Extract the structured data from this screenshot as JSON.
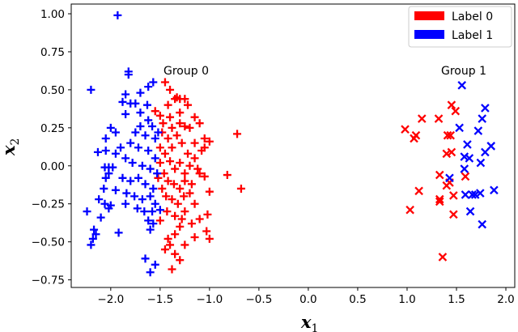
{
  "chart_data": {
    "type": "scatter",
    "xlabel": "x_1",
    "ylabel": "x_2",
    "xlim": [
      -2.4,
      2.09
    ],
    "ylim": [
      -0.8,
      1.064
    ],
    "xticks": [
      "−2.0",
      "−1.5",
      "−1.0",
      "−0.5",
      "0.0",
      "0.5",
      "1.0",
      "1.5",
      "2.0"
    ],
    "xtick_values": [
      -2.0,
      -1.5,
      -1.0,
      -0.5,
      0.0,
      0.5,
      1.0,
      1.5,
      2.0
    ],
    "yticks": [
      "1.00",
      "0.75",
      "0.50",
      "0.25",
      "0.00",
      "−0.25",
      "−0.50",
      "−0.75"
    ],
    "ytick_values": [
      1.0,
      0.75,
      0.5,
      0.25,
      0.0,
      -0.25,
      -0.5,
      -0.75
    ],
    "grid": false,
    "legend_position": "top-right",
    "annotations": [
      {
        "text": "Group 0",
        "x": -1.25,
        "y": 0.63
      },
      {
        "text": "Group 1",
        "x": 1.6,
        "y": 0.63
      }
    ],
    "series": [
      {
        "name": "Label 0",
        "color": "#ff0000",
        "groups": [
          {
            "group": "Group 0",
            "marker": "plus",
            "points": [
              [
                -1.45,
                0.55
              ],
              [
                -1.4,
                0.5
              ],
              [
                -1.33,
                0.45
              ],
              [
                -1.42,
                0.4
              ],
              [
                -1.35,
                0.44
              ],
              [
                -1.3,
                0.44
              ],
              [
                -1.25,
                0.44
              ],
              [
                -1.22,
                0.4
              ],
              [
                -1.55,
                0.36
              ],
              [
                -1.5,
                0.33
              ],
              [
                -1.4,
                0.32
              ],
              [
                -1.3,
                0.35
              ],
              [
                -1.15,
                0.32
              ],
              [
                -1.1,
                0.28
              ],
              [
                -1.2,
                0.25
              ],
              [
                -1.25,
                0.26
              ],
              [
                -0.72,
                0.21
              ],
              [
                -1.0,
                0.16
              ],
              [
                -1.05,
                0.18
              ],
              [
                -1.15,
                0.15
              ],
              [
                -1.08,
                0.1
              ],
              [
                -1.05,
                0.12
              ],
              [
                -0.82,
                -0.06
              ],
              [
                -0.68,
                -0.15
              ],
              [
                -1.05,
                -0.07
              ],
              [
                -1.1,
                -0.05
              ],
              [
                -1.0,
                -0.17
              ],
              [
                -1.15,
                -0.25
              ],
              [
                -1.02,
                -0.32
              ],
              [
                -1.1,
                -0.35
              ],
              [
                -1.25,
                -0.3
              ],
              [
                -1.3,
                -0.4
              ],
              [
                -1.35,
                -0.45
              ],
              [
                -1.42,
                -0.48
              ],
              [
                -1.45,
                -0.55
              ],
              [
                -1.4,
                -0.52
              ],
              [
                -1.25,
                -0.52
              ],
              [
                -1.15,
                -0.47
              ],
              [
                -1.0,
                -0.48
              ],
              [
                -1.03,
                -0.43
              ],
              [
                -1.35,
                -0.58
              ],
              [
                -1.3,
                -0.62
              ],
              [
                -1.38,
                -0.68
              ],
              [
                -1.5,
                -0.36
              ],
              [
                -1.35,
                -0.33
              ],
              [
                -1.48,
                0.22
              ],
              [
                -1.42,
                0.18
              ],
              [
                -1.38,
                0.12
              ],
              [
                -1.33,
                0.2
              ],
              [
                -1.28,
                0.15
              ],
              [
                -1.22,
                0.08
              ],
              [
                -1.45,
                0.08
              ],
              [
                -1.5,
                0.02
              ],
              [
                -1.4,
                0.03
              ],
              [
                -1.35,
                -0.02
              ],
              [
                -1.3,
                0.02
              ],
              [
                -1.25,
                -0.05
              ],
              [
                -1.2,
                0.0
              ],
              [
                -1.46,
                -0.05
              ],
              [
                -1.42,
                -0.1
              ],
              [
                -1.36,
                -0.12
              ],
              [
                -1.3,
                -0.15
              ],
              [
                -1.25,
                -0.1
              ],
              [
                -1.18,
                -0.12
              ],
              [
                -1.48,
                -0.15
              ],
              [
                -1.44,
                -0.2
              ],
              [
                -1.38,
                -0.22
              ],
              [
                -1.32,
                -0.25
              ],
              [
                -1.26,
                -0.2
              ],
              [
                -1.2,
                -0.18
              ],
              [
                -1.47,
                0.28
              ],
              [
                -1.38,
                0.25
              ],
              [
                -1.3,
                0.28
              ],
              [
                -1.15,
                0.05
              ],
              [
                -1.12,
                -0.02
              ],
              [
                -1.52,
                -0.08
              ],
              [
                -1.5,
                0.12
              ],
              [
                -1.43,
                -0.3
              ],
              [
                -1.28,
                -0.35
              ],
              [
                -1.18,
                -0.38
              ]
            ]
          },
          {
            "group": "Group 1",
            "marker": "x",
            "points": [
              [
                1.45,
                0.4
              ],
              [
                1.49,
                0.36
              ],
              [
                1.15,
                0.31
              ],
              [
                1.32,
                0.31
              ],
              [
                0.98,
                0.24
              ],
              [
                1.09,
                0.2
              ],
              [
                1.07,
                0.18
              ],
              [
                1.41,
                0.2
              ],
              [
                1.44,
                0.2
              ],
              [
                1.4,
                0.08
              ],
              [
                1.45,
                0.09
              ],
              [
                1.33,
                -0.06
              ],
              [
                1.43,
                -0.11
              ],
              [
                1.4,
                -0.13
              ],
              [
                1.59,
                -0.07
              ],
              [
                1.12,
                -0.165
              ],
              [
                1.47,
                -0.195
              ],
              [
                1.33,
                -0.22
              ],
              [
                1.33,
                -0.235
              ],
              [
                1.03,
                -0.29
              ],
              [
                1.47,
                -0.32
              ],
              [
                1.36,
                -0.6
              ]
            ]
          }
        ]
      },
      {
        "name": "Label 1",
        "color": "#0000ff",
        "groups": [
          {
            "group": "Group 0",
            "marker": "plus",
            "points": [
              [
                -1.93,
                0.99
              ],
              [
                -1.82,
                0.62
              ],
              [
                -1.82,
                0.6
              ],
              [
                -2.2,
                0.5
              ],
              [
                -1.85,
                0.47
              ],
              [
                -1.7,
                0.48
              ],
              [
                -1.62,
                0.52
              ],
              [
                -1.57,
                0.55
              ],
              [
                -1.88,
                0.42
              ],
              [
                -1.8,
                0.41
              ],
              [
                -1.75,
                0.41
              ],
              [
                -1.85,
                0.34
              ],
              [
                -2.0,
                0.25
              ],
              [
                -1.95,
                0.22
              ],
              [
                -2.05,
                0.18
              ],
              [
                -2.05,
                0.1
              ],
              [
                -1.95,
                0.08
              ],
              [
                -2.13,
                0.09
              ],
              [
                -2.06,
                -0.01
              ],
              [
                -2.02,
                -0.01
              ],
              [
                -1.98,
                -0.01
              ],
              [
                -2.02,
                -0.05
              ],
              [
                -2.05,
                -0.08
              ],
              [
                -2.07,
                -0.15
              ],
              [
                -1.95,
                -0.16
              ],
              [
                -2.12,
                -0.22
              ],
              [
                -2.06,
                -0.25
              ],
              [
                -2.02,
                -0.28
              ],
              [
                -2.0,
                -0.26
              ],
              [
                -2.24,
                -0.3
              ],
              [
                -2.1,
                -0.34
              ],
              [
                -2.17,
                -0.42
              ],
              [
                -2.15,
                -0.45
              ],
              [
                -1.92,
                -0.44
              ],
              [
                -2.18,
                -0.48
              ],
              [
                -2.2,
                -0.52
              ],
              [
                -1.62,
                -0.36
              ],
              [
                -1.57,
                -0.38
              ],
              [
                -1.6,
                -0.42
              ],
              [
                -1.58,
                -0.3
              ],
              [
                -1.5,
                -0.29
              ],
              [
                -1.65,
                -0.61
              ],
              [
                -1.55,
                -0.65
              ],
              [
                -1.6,
                -0.7
              ],
              [
                -1.62,
                0.3
              ],
              [
                -1.58,
                0.26
              ],
              [
                -1.7,
                0.26
              ],
              [
                -1.75,
                0.22
              ],
              [
                -1.65,
                0.2
              ],
              [
                -1.55,
                0.18
              ],
              [
                -1.8,
                0.15
              ],
              [
                -1.72,
                0.12
              ],
              [
                -1.62,
                0.1
              ],
              [
                -1.55,
                0.05
              ],
              [
                -1.85,
                0.05
              ],
              [
                -1.78,
                0.02
              ],
              [
                -1.68,
                0.0
              ],
              [
                -1.6,
                -0.02
              ],
              [
                -1.53,
                -0.05
              ],
              [
                -1.88,
                -0.08
              ],
              [
                -1.8,
                -0.1
              ],
              [
                -1.72,
                -0.08
              ],
              [
                -1.65,
                -0.12
              ],
              [
                -1.57,
                -0.15
              ],
              [
                -1.84,
                -0.18
              ],
              [
                -1.76,
                -0.2
              ],
              [
                -1.68,
                -0.22
              ],
              [
                -1.6,
                -0.2
              ],
              [
                -1.9,
                0.12
              ],
              [
                -1.7,
                0.35
              ],
              [
                -1.63,
                0.4
              ],
              [
                -1.52,
                0.22
              ],
              [
                -1.73,
                -0.28
              ],
              [
                -1.66,
                -0.3
              ],
              [
                -1.85,
                -0.25
              ],
              [
                -1.55,
                -0.25
              ]
            ]
          },
          {
            "group": "Group 1",
            "marker": "x",
            "points": [
              [
                1.555,
                0.53
              ],
              [
                1.79,
                0.38
              ],
              [
                1.76,
                0.31
              ],
              [
                1.53,
                0.25
              ],
              [
                1.72,
                0.23
              ],
              [
                1.61,
                0.14
              ],
              [
                1.85,
                0.13
              ],
              [
                1.79,
                0.09
              ],
              [
                1.58,
                0.06
              ],
              [
                1.63,
                0.05
              ],
              [
                1.745,
                0.02
              ],
              [
                1.58,
                -0.02
              ],
              [
                1.43,
                -0.08
              ],
              [
                1.59,
                -0.19
              ],
              [
                1.66,
                -0.19
              ],
              [
                1.69,
                -0.19
              ],
              [
                1.74,
                -0.18
              ],
              [
                1.88,
                -0.16
              ],
              [
                1.64,
                -0.3
              ],
              [
                1.76,
                -0.385
              ]
            ]
          }
        ]
      }
    ]
  }
}
